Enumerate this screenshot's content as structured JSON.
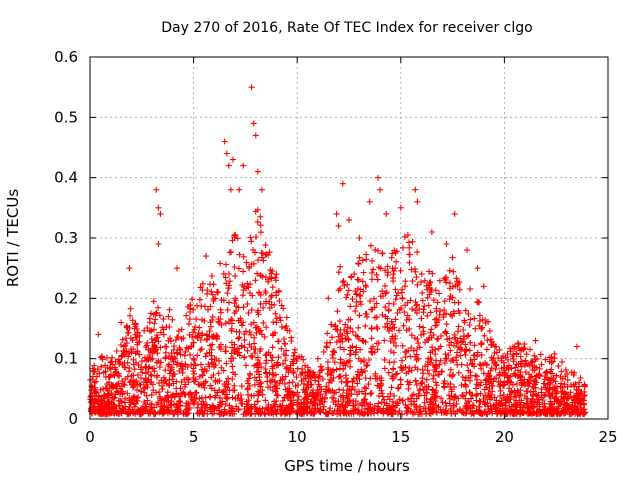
{
  "chart_data": {
    "type": "scatter",
    "title": "Day 270 of 2016, Rate Of TEC Index for receiver clgo",
    "xlabel": "GPS time / hours",
    "ylabel": "ROTI / TECUs",
    "xlim": [
      0,
      25
    ],
    "ylim": [
      0,
      0.6
    ],
    "xticks": [
      0,
      5,
      10,
      15,
      20,
      25
    ],
    "yticks": [
      0,
      0.1,
      0.2,
      0.3,
      0.4,
      0.5,
      0.6
    ],
    "xtick_labels": [
      "0",
      "5",
      "10",
      "15",
      "20",
      "25"
    ],
    "ytick_labels": [
      "0",
      "0.1",
      "0.2",
      "0.3",
      "0.4",
      "0.5",
      "0.6"
    ],
    "grid": true,
    "marker": "plus",
    "series": [
      {
        "name": "ROTI",
        "color": "#ff0000",
        "envelope": {
          "hours": [
            0,
            0.5,
            1,
            1.5,
            2,
            2.5,
            3,
            3.5,
            4,
            4.5,
            5,
            5.5,
            6,
            6.5,
            7,
            7.5,
            8,
            8.5,
            9,
            9.5,
            10,
            10.5,
            11,
            11.5,
            12,
            12.5,
            13,
            13.5,
            14,
            14.5,
            15,
            15.5,
            16,
            16.5,
            17,
            17.5,
            18,
            18.5,
            19,
            19.5,
            20,
            20.5,
            21,
            21.5,
            22,
            22.5,
            23,
            23.5,
            23.9
          ],
          "typical_max": [
            0.08,
            0.1,
            0.09,
            0.12,
            0.18,
            0.12,
            0.2,
            0.16,
            0.18,
            0.16,
            0.2,
            0.22,
            0.24,
            0.26,
            0.3,
            0.28,
            0.35,
            0.3,
            0.22,
            0.16,
            0.1,
            0.09,
            0.06,
            0.15,
            0.25,
            0.22,
            0.26,
            0.28,
            0.3,
            0.26,
            0.3,
            0.3,
            0.26,
            0.24,
            0.22,
            0.26,
            0.2,
            0.22,
            0.18,
            0.12,
            0.1,
            0.12,
            0.12,
            0.1,
            0.1,
            0.1,
            0.08,
            0.07,
            0.05
          ]
        },
        "peaks": [
          {
            "x": 0.4,
            "y": 0.14
          },
          {
            "x": 1.5,
            "y": 0.16
          },
          {
            "x": 1.9,
            "y": 0.25
          },
          {
            "x": 3.2,
            "y": 0.38
          },
          {
            "x": 3.3,
            "y": 0.35
          },
          {
            "x": 3.4,
            "y": 0.34
          },
          {
            "x": 3.3,
            "y": 0.29
          },
          {
            "x": 4.2,
            "y": 0.25
          },
          {
            "x": 5.6,
            "y": 0.27
          },
          {
            "x": 6.5,
            "y": 0.46
          },
          {
            "x": 6.6,
            "y": 0.44
          },
          {
            "x": 6.7,
            "y": 0.42
          },
          {
            "x": 6.9,
            "y": 0.43
          },
          {
            "x": 6.8,
            "y": 0.38
          },
          {
            "x": 7.2,
            "y": 0.38
          },
          {
            "x": 7.4,
            "y": 0.42
          },
          {
            "x": 7.8,
            "y": 0.55
          },
          {
            "x": 7.9,
            "y": 0.49
          },
          {
            "x": 8.0,
            "y": 0.47
          },
          {
            "x": 8.1,
            "y": 0.41
          },
          {
            "x": 8.3,
            "y": 0.38
          },
          {
            "x": 9.0,
            "y": 0.24
          },
          {
            "x": 11.0,
            "y": 0.1
          },
          {
            "x": 11.5,
            "y": 0.2
          },
          {
            "x": 11.9,
            "y": 0.34
          },
          {
            "x": 12.0,
            "y": 0.32
          },
          {
            "x": 12.2,
            "y": 0.39
          },
          {
            "x": 12.5,
            "y": 0.33
          },
          {
            "x": 13.0,
            "y": 0.3
          },
          {
            "x": 13.5,
            "y": 0.36
          },
          {
            "x": 13.9,
            "y": 0.4
          },
          {
            "x": 14.0,
            "y": 0.38
          },
          {
            "x": 14.3,
            "y": 0.34
          },
          {
            "x": 15.0,
            "y": 0.35
          },
          {
            "x": 15.7,
            "y": 0.38
          },
          {
            "x": 15.8,
            "y": 0.36
          },
          {
            "x": 16.5,
            "y": 0.31
          },
          {
            "x": 17.2,
            "y": 0.29
          },
          {
            "x": 17.6,
            "y": 0.34
          },
          {
            "x": 18.2,
            "y": 0.28
          },
          {
            "x": 18.7,
            "y": 0.25
          },
          {
            "x": 19.0,
            "y": 0.22
          },
          {
            "x": 20.5,
            "y": 0.12
          },
          {
            "x": 21.5,
            "y": 0.13
          },
          {
            "x": 23.5,
            "y": 0.12
          }
        ]
      }
    ]
  }
}
